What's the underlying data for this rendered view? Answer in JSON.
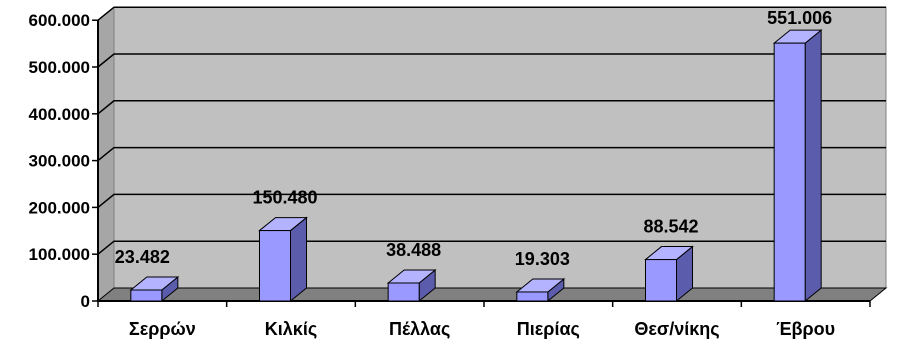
{
  "chart_data": {
    "type": "bar",
    "title": "",
    "xlabel": "",
    "ylabel": "",
    "categories": [
      "Σερρών",
      "Κιλκίς",
      "Πέλλας",
      "Πιερίας",
      "Θεσ/νίκης",
      "Έβρου"
    ],
    "values": [
      23482,
      150480,
      38488,
      19303,
      88542,
      551006
    ],
    "value_labels": [
      "23.482",
      "150.480",
      "38.488",
      "19.303",
      "88.542",
      "551.006"
    ],
    "y_ticks": [
      0,
      100000,
      200000,
      300000,
      400000,
      500000,
      600000
    ],
    "y_tick_labels": [
      "0",
      "100.000",
      "200.000",
      "300.000",
      "400.000",
      "500.000",
      "600.000"
    ],
    "ylim": [
      0,
      600000
    ],
    "grid": true,
    "legend": "none",
    "style": "3d-bar",
    "colors": {
      "bar_front": "#9999ff",
      "bar_side": "#5c5cad",
      "bar_top": "#b3b3ff",
      "plot_wall": "#c0c0c0",
      "floor": "#808080",
      "gridline": "#000000"
    }
  }
}
